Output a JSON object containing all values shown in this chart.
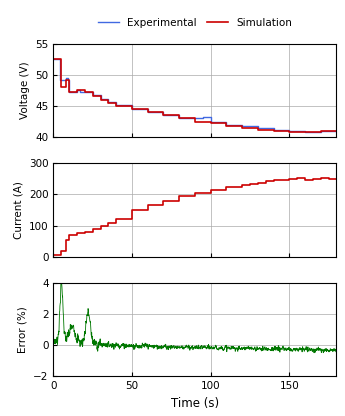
{
  "voltage_sim_t": [
    0,
    5,
    5,
    8,
    8,
    10,
    10,
    15,
    15,
    20,
    20,
    25,
    25,
    30,
    30,
    35,
    35,
    40,
    40,
    50,
    50,
    60,
    60,
    70,
    70,
    80,
    80,
    90,
    90,
    100,
    100,
    110,
    110,
    120,
    120,
    130,
    130,
    140,
    140,
    150,
    150,
    160,
    160,
    170,
    170,
    180
  ],
  "voltage_sim_v": [
    52.5,
    52.5,
    48.0,
    48.0,
    49.2,
    49.2,
    47.3,
    47.3,
    47.5,
    47.5,
    47.2,
    47.2,
    46.6,
    46.6,
    46.0,
    46.0,
    45.5,
    45.5,
    45.0,
    45.0,
    44.5,
    44.5,
    44.0,
    44.0,
    43.5,
    43.5,
    43.0,
    43.0,
    42.5,
    42.5,
    42.2,
    42.2,
    41.8,
    41.8,
    41.5,
    41.5,
    41.2,
    41.2,
    41.0,
    41.0,
    40.9,
    40.9,
    40.8,
    40.8,
    41.0,
    41.0
  ],
  "voltage_exp_t": [
    0,
    4,
    4,
    8,
    8,
    9,
    9,
    10,
    10,
    15,
    15,
    17,
    17,
    20,
    20,
    25,
    25,
    30,
    30,
    35,
    35,
    40,
    40,
    50,
    50,
    60,
    60,
    70,
    70,
    80,
    80,
    90,
    90,
    95,
    95,
    100,
    100,
    110,
    110,
    120,
    120,
    130,
    130,
    140,
    140,
    150,
    150,
    160,
    160,
    170,
    170,
    180
  ],
  "voltage_exp_v": [
    52.5,
    52.5,
    49.2,
    49.2,
    49.5,
    49.5,
    49.2,
    49.2,
    47.3,
    47.3,
    47.5,
    47.5,
    47.3,
    47.3,
    47.2,
    47.2,
    46.7,
    46.7,
    46.1,
    46.1,
    45.6,
    45.6,
    45.2,
    45.2,
    44.5,
    44.5,
    44.0,
    44.0,
    43.5,
    43.5,
    43.1,
    43.1,
    43.0,
    43.0,
    43.3,
    43.3,
    42.5,
    42.5,
    42.0,
    42.0,
    41.8,
    41.8,
    41.5,
    41.5,
    41.2,
    41.2,
    41.0,
    41.0,
    40.9,
    40.9,
    41.0,
    41.0
  ],
  "current_sim_t": [
    0,
    0,
    5,
    5,
    8,
    8,
    10,
    10,
    15,
    15,
    20,
    20,
    25,
    25,
    30,
    30,
    35,
    35,
    40,
    40,
    50,
    50,
    60,
    60,
    70,
    70,
    80,
    80,
    90,
    90,
    100,
    100,
    110,
    110,
    120,
    120,
    125,
    125,
    130,
    130,
    135,
    135,
    140,
    140,
    145,
    145,
    150,
    150,
    155,
    155,
    160,
    160,
    165,
    165,
    170,
    170,
    175,
    175,
    180
  ],
  "current_sim_v": [
    0,
    5,
    5,
    20,
    20,
    55,
    55,
    70,
    70,
    75,
    75,
    80,
    80,
    90,
    90,
    100,
    100,
    110,
    110,
    120,
    120,
    150,
    150,
    165,
    165,
    180,
    180,
    195,
    195,
    205,
    205,
    215,
    215,
    225,
    225,
    230,
    230,
    235,
    235,
    238,
    238,
    242,
    242,
    245,
    245,
    248,
    248,
    250,
    250,
    252,
    252,
    248,
    248,
    250,
    250,
    252,
    252,
    250,
    250
  ],
  "xlabel": "Time (s)",
  "ylabel_voltage": "Voltage (V)",
  "ylabel_current": "Current (A)",
  "ylabel_error": "Error (%)",
  "legend_exp": "Experimental",
  "legend_sim": "Simulation",
  "xlim": [
    0,
    180
  ],
  "voltage_ylim": [
    40,
    55
  ],
  "current_ylim": [
    0,
    300
  ],
  "error_ylim": [
    -2,
    4
  ],
  "xticks": [
    0,
    50,
    100,
    150
  ],
  "voltage_yticks": [
    40,
    45,
    50,
    55
  ],
  "current_yticks": [
    0,
    100,
    200,
    300
  ],
  "error_yticks": [
    -2,
    0,
    2,
    4
  ],
  "color_exp": "#4169E1",
  "color_sim": "#CC0000",
  "color_error": "#007700",
  "grid_color": "#aaaaaa",
  "bg_color": "#ffffff"
}
